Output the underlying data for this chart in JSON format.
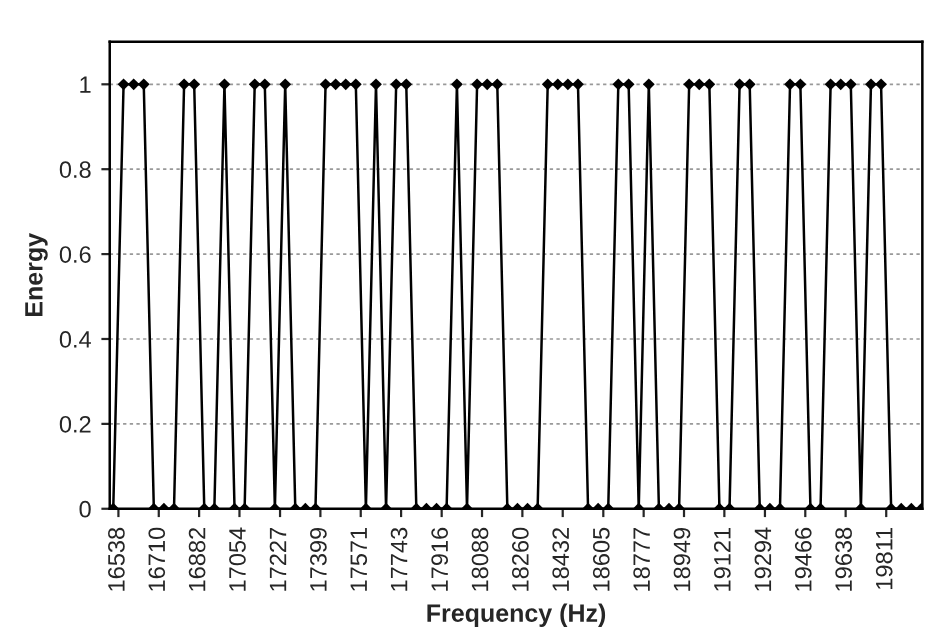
{
  "chart_data": {
    "type": "line",
    "xlabel": "Frequency (Hz)",
    "ylabel": "Energy",
    "x": [
      16516,
      16560,
      16603,
      16646,
      16689,
      16732,
      16775,
      16818,
      16861,
      16904,
      16947,
      16990,
      17033,
      17076,
      17119,
      17162,
      17205,
      17249,
      17292,
      17335,
      17378,
      17421,
      17464,
      17507,
      17550,
      17593,
      17636,
      17679,
      17722,
      17765,
      17808,
      17851,
      17894,
      17937,
      17981,
      18024,
      18067,
      18110,
      18153,
      18196,
      18239,
      18282,
      18325,
      18368,
      18411,
      18454,
      18497,
      18540,
      18583,
      18626,
      18669,
      18713,
      18756,
      18799,
      18842,
      18885,
      18928,
      18971,
      19014,
      19057,
      19100,
      19143,
      19186,
      19229,
      19272,
      19315,
      19358,
      19401,
      19445,
      19488,
      19531,
      19574,
      19617,
      19660,
      19703,
      19746,
      19789,
      19832,
      19875,
      19918,
      19961
    ],
    "series": [
      {
        "color": "#000000",
        "values": [
          0,
          1,
          1,
          1,
          0,
          0,
          0,
          1,
          1,
          0,
          0,
          1,
          0,
          0,
          1,
          1,
          0,
          1,
          0,
          0,
          0,
          1,
          1,
          1,
          1,
          0,
          1,
          0,
          1,
          1,
          0,
          0,
          0,
          0,
          1,
          0,
          1,
          1,
          1,
          0,
          0,
          0,
          0,
          1,
          1,
          1,
          1,
          0,
          0,
          0,
          1,
          1,
          0,
          1,
          0,
          0,
          0,
          1,
          1,
          1,
          0,
          0,
          1,
          1,
          0,
          0,
          0,
          1,
          1,
          0,
          0,
          1,
          1,
          1,
          0,
          1,
          1,
          0,
          0,
          0,
          0
        ]
      }
    ],
    "xlim": [
      16501,
      19965
    ],
    "xticks": [
      16538,
      16710,
      16882,
      17054,
      17227,
      17399,
      17571,
      17743,
      17916,
      18088,
      18260,
      18432,
      18605,
      18777,
      18949,
      19121,
      19294,
      19466,
      19638,
      19811
    ],
    "ylim": [
      0,
      1.1
    ],
    "yticks": [
      0,
      0.2,
      0.4,
      0.6,
      0.8,
      1
    ],
    "grid": "y",
    "legend": false,
    "marker": "diamond",
    "line_style": "solid"
  }
}
